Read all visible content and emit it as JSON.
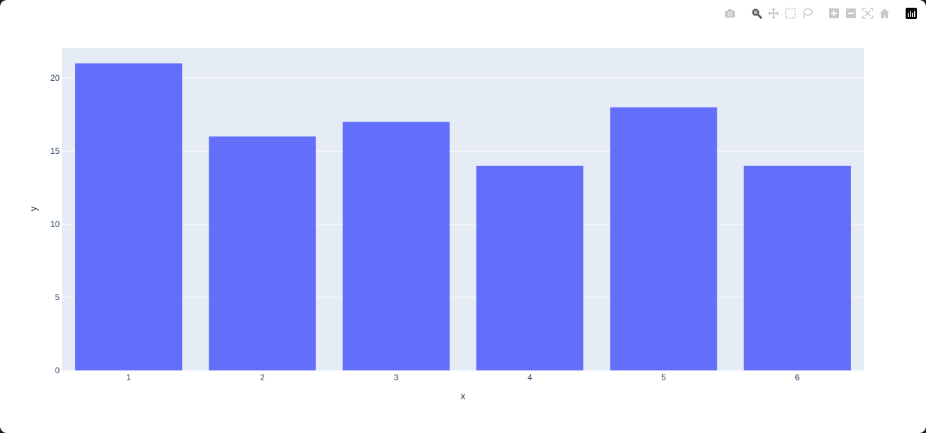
{
  "modebar": {
    "icons": [
      "camera-icon",
      "zoom-icon",
      "pan-icon",
      "box-select-icon",
      "lasso-select-icon",
      "zoom-in-icon",
      "zoom-out-icon",
      "autoscale-icon",
      "reset-axes-icon",
      "plotly-logo-icon"
    ],
    "active": "zoom-icon"
  },
  "chart_data": {
    "type": "bar",
    "categories": [
      "1",
      "2",
      "3",
      "4",
      "5",
      "6"
    ],
    "values": [
      21,
      16,
      17,
      14,
      18,
      14
    ],
    "xlabel": "x",
    "ylabel": "y",
    "ylim": [
      0,
      22.07
    ],
    "yticks": [
      0,
      5,
      10,
      15,
      20
    ],
    "grid": true,
    "colors": {
      "bar": "#636efa",
      "plot_bg": "#e5ecf6",
      "grid": "#ffffff",
      "text": "#2a3f5f"
    }
  }
}
